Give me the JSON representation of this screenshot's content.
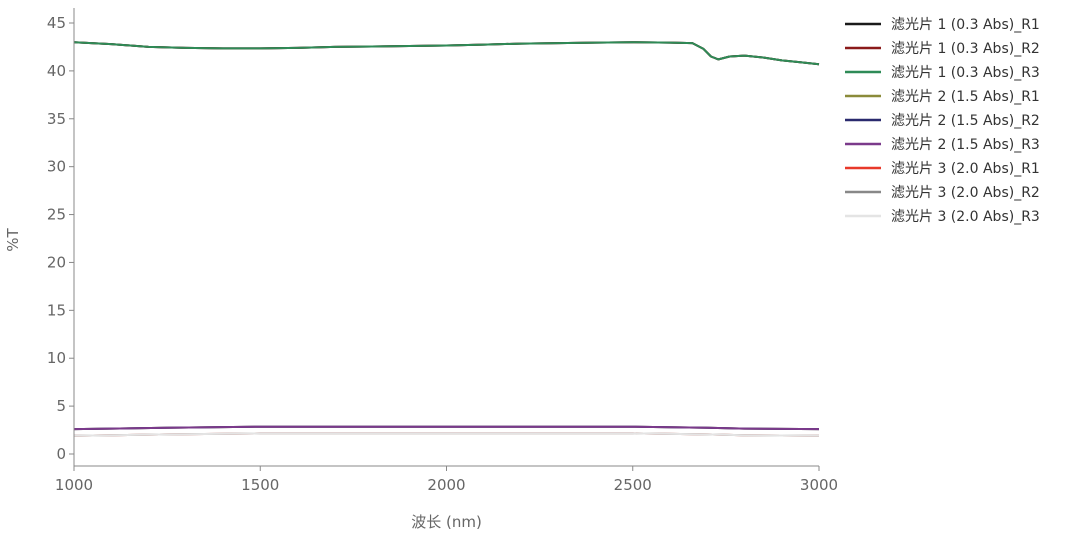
{
  "chart_data": {
    "type": "line",
    "title": "",
    "xlabel": "波长 (nm)",
    "ylabel": "%T",
    "xlim": [
      1000,
      3000
    ],
    "ylim": [
      -1,
      46
    ],
    "xticks": [
      1000,
      1500,
      2000,
      2500,
      3000
    ],
    "yticks": [
      0,
      5,
      10,
      15,
      20,
      25,
      30,
      35,
      40,
      45
    ],
    "grid": false,
    "legend_position": "right",
    "series": [
      {
        "name": "滤光片 1 (0.3 Abs)_R1",
        "color": "#1a1a1a",
        "x": [
          1000,
          1100,
          1200,
          1300,
          1400,
          1500,
          1600,
          1700,
          1800,
          1900,
          2000,
          2100,
          2200,
          2300,
          2400,
          2500,
          2600,
          2660,
          2690,
          2710,
          2730,
          2760,
          2800,
          2850,
          2900,
          2950,
          3000
        ],
        "y": [
          43.0,
          42.8,
          42.5,
          42.4,
          42.35,
          42.35,
          42.4,
          42.5,
          42.55,
          42.6,
          42.65,
          42.75,
          42.85,
          42.9,
          42.95,
          43.0,
          42.95,
          42.9,
          42.3,
          41.5,
          41.2,
          41.5,
          41.6,
          41.4,
          41.1,
          40.9,
          40.7
        ]
      },
      {
        "name": "滤光片 1 (0.3 Abs)_R2",
        "color": "#8b1a1a",
        "x": [
          1000,
          1100,
          1200,
          1300,
          1400,
          1500,
          1600,
          1700,
          1800,
          1900,
          2000,
          2100,
          2200,
          2300,
          2400,
          2500,
          2600,
          2660,
          2690,
          2710,
          2730,
          2760,
          2800,
          2850,
          2900,
          2950,
          3000
        ],
        "y": [
          43.0,
          42.8,
          42.5,
          42.4,
          42.35,
          42.35,
          42.4,
          42.5,
          42.55,
          42.6,
          42.65,
          42.75,
          42.85,
          42.9,
          42.95,
          43.0,
          42.95,
          42.9,
          42.3,
          41.5,
          41.2,
          41.5,
          41.6,
          41.4,
          41.1,
          40.9,
          40.7
        ]
      },
      {
        "name": "滤光片 1 (0.3 Abs)_R3",
        "color": "#2e8b57",
        "x": [
          1000,
          1100,
          1200,
          1300,
          1400,
          1500,
          1600,
          1700,
          1800,
          1900,
          2000,
          2100,
          2200,
          2300,
          2400,
          2500,
          2600,
          2660,
          2690,
          2710,
          2730,
          2760,
          2800,
          2850,
          2900,
          2950,
          3000
        ],
        "y": [
          43.0,
          42.8,
          42.5,
          42.4,
          42.35,
          42.35,
          42.4,
          42.5,
          42.55,
          42.6,
          42.65,
          42.75,
          42.85,
          42.9,
          42.95,
          43.0,
          42.95,
          42.9,
          42.3,
          41.5,
          41.2,
          41.5,
          41.6,
          41.4,
          41.1,
          40.9,
          40.7
        ]
      },
      {
        "name": "滤光片 2 (1.5 Abs)_R1",
        "color": "#8b8b3a",
        "x": [
          1000,
          1100,
          1250,
          1500,
          2000,
          2500,
          2700,
          2800,
          3000
        ],
        "y": [
          2.6,
          2.65,
          2.75,
          2.85,
          2.85,
          2.85,
          2.75,
          2.65,
          2.6
        ]
      },
      {
        "name": "滤光片 2 (1.5 Abs)_R2",
        "color": "#2a2a6e",
        "x": [
          1000,
          1100,
          1250,
          1500,
          2000,
          2500,
          2700,
          2800,
          3000
        ],
        "y": [
          2.6,
          2.65,
          2.75,
          2.85,
          2.85,
          2.85,
          2.75,
          2.65,
          2.6
        ]
      },
      {
        "name": "滤光片 2 (1.5 Abs)_R3",
        "color": "#7b3a8b",
        "x": [
          1000,
          1100,
          1250,
          1500,
          2000,
          2500,
          2700,
          2800,
          3000
        ],
        "y": [
          2.6,
          2.65,
          2.75,
          2.85,
          2.85,
          2.85,
          2.75,
          2.65,
          2.6
        ]
      },
      {
        "name": "滤光片 3 (2.0 Abs)_R1",
        "color": "#e8392a",
        "x": [
          1000,
          1100,
          1250,
          1500,
          2000,
          2500,
          2700,
          2800,
          3000
        ],
        "y": [
          1.9,
          1.95,
          2.05,
          2.15,
          2.15,
          2.15,
          2.05,
          1.95,
          1.9
        ]
      },
      {
        "name": "滤光片 3 (2.0 Abs)_R2",
        "color": "#888888",
        "x": [
          1000,
          1100,
          1250,
          1500,
          2000,
          2500,
          2700,
          2800,
          3000
        ],
        "y": [
          1.9,
          1.95,
          2.05,
          2.15,
          2.15,
          2.15,
          2.05,
          1.95,
          1.9
        ]
      },
      {
        "name": "滤光片 3 (2.0 Abs)_R3",
        "color": "#e4e4e4",
        "x": [
          1000,
          1100,
          1250,
          1500,
          2000,
          2500,
          2700,
          2800,
          3000
        ],
        "y": [
          1.9,
          1.95,
          2.05,
          2.15,
          2.15,
          2.15,
          2.05,
          1.95,
          1.9
        ]
      }
    ]
  }
}
